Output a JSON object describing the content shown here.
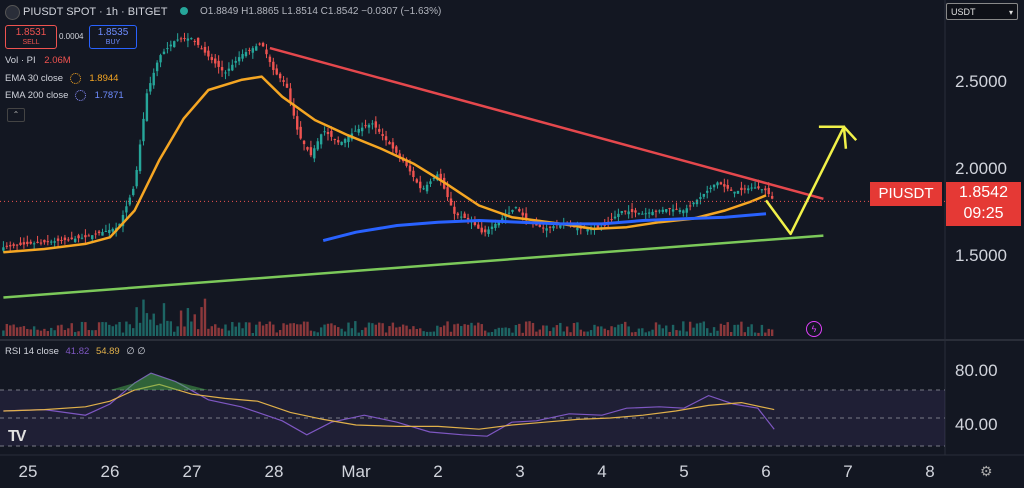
{
  "header": {
    "title": "PIUSDT SPOT · 1h · BITGET",
    "ohlc_label": "O1.8849 H1.8865 L1.8514 C1.8542 −0.0307 (−1.63%)",
    "sell_price": "1.8531",
    "sell_label": "SELL",
    "spread": "0.0004",
    "buy_price": "1.8535",
    "buy_label": "BUY"
  },
  "legend": {
    "vol": "Vol · PI",
    "vol_value": "2.06M",
    "ema30": "EMA 30 close",
    "ema30_value": "1.8944",
    "ema200": "EMA 200 close",
    "ema200_value": "1.7871"
  },
  "currency_select": "USDT",
  "price_tag": {
    "symbol": "PIUSDT",
    "price": "1.8542",
    "countdown": "09:25"
  },
  "rsi_legend": {
    "label": "RSI 14 close",
    "value1": "41.82",
    "value2": "54.89",
    "extra": "∅ ∅"
  },
  "icons": {
    "logo": "TV",
    "settings": "gear-icon",
    "bolt": "lightning-icon"
  },
  "colors": {
    "background": "#131722",
    "up": "#26a69a",
    "down": "#ef5350",
    "ema30": "#f5a623",
    "ema200": "#2962ff",
    "resistance": "#e5484d",
    "support": "#7cc95a",
    "projection": "#f1f149",
    "rsi": "#7e57c2",
    "rsi_ma": "#e0b04a"
  },
  "chart_data": [
    {
      "type": "line",
      "title": "",
      "x": [
        "25",
        "26",
        "27",
        "28",
        "Mar",
        "2",
        "3",
        "4",
        "5",
        "6",
        "7",
        "8"
      ],
      "xlabel": "",
      "ylabel": "",
      "ylim": [
        1.05,
        2.95
      ],
      "yticks": [
        1.5,
        2.0,
        2.5
      ],
      "ytick_labels": [
        "1.5000",
        "2.0000",
        "2.5000"
      ],
      "grid": false,
      "series": [
        {
          "name": "EMA 30 close",
          "points": [
            [
              24.7,
              1.55
            ],
            [
              25.2,
              1.57
            ],
            [
              25.7,
              1.6
            ],
            [
              26.0,
              1.64
            ],
            [
              26.3,
              1.8
            ],
            [
              26.6,
              2.1
            ],
            [
              26.9,
              2.35
            ],
            [
              27.2,
              2.52
            ],
            [
              27.6,
              2.58
            ],
            [
              27.85,
              2.6
            ],
            [
              28.1,
              2.48
            ],
            [
              28.5,
              2.34
            ],
            [
              28.9,
              2.25
            ],
            [
              29.3,
              2.17
            ],
            [
              29.7,
              2.08
            ],
            [
              30.1,
              1.96
            ],
            [
              30.5,
              1.83
            ],
            [
              30.9,
              1.76
            ],
            [
              31.2,
              1.74
            ],
            [
              31.5,
              1.72
            ],
            [
              31.9,
              1.69
            ],
            [
              32.3,
              1.7
            ],
            [
              32.7,
              1.73
            ],
            [
              33.1,
              1.75
            ],
            [
              33.5,
              1.8
            ],
            [
              33.8,
              1.85
            ],
            [
              34.0,
              1.89
            ]
          ]
        },
        {
          "name": "EMA 200 close",
          "points": [
            [
              28.6,
              1.62
            ],
            [
              29.0,
              1.67
            ],
            [
              29.5,
              1.71
            ],
            [
              30.0,
              1.73
            ],
            [
              30.5,
              1.74
            ],
            [
              31.0,
              1.73
            ],
            [
              31.5,
              1.72
            ],
            [
              32.0,
              1.72
            ],
            [
              32.5,
              1.74
            ],
            [
              33.0,
              1.75
            ],
            [
              33.5,
              1.76
            ],
            [
              34.0,
              1.78
            ]
          ]
        },
        {
          "name": "Resistance",
          "points": [
            [
              27.95,
              2.77
            ],
            [
              34.7,
              1.87
            ]
          ]
        },
        {
          "name": "Support",
          "points": [
            [
              24.7,
              1.28
            ],
            [
              34.7,
              1.65
            ]
          ]
        },
        {
          "name": "Projection",
          "points": [
            [
              34.0,
              1.86
            ],
            [
              34.3,
              1.66
            ],
            [
              34.95,
              2.3
            ],
            [
              35.1,
              2.22
            ]
          ]
        },
        {
          "name": "Price",
          "points": [
            [
              24.7,
              1.58
            ],
            [
              25.0,
              1.6
            ],
            [
              25.4,
              1.62
            ],
            [
              25.7,
              1.64
            ],
            [
              26.1,
              1.7
            ],
            [
              26.3,
              1.95
            ],
            [
              26.45,
              2.5
            ],
            [
              26.6,
              2.72
            ],
            [
              26.8,
              2.82
            ],
            [
              27.0,
              2.83
            ],
            [
              27.2,
              2.72
            ],
            [
              27.4,
              2.62
            ],
            [
              27.6,
              2.73
            ],
            [
              27.85,
              2.8
            ],
            [
              28.0,
              2.63
            ],
            [
              28.15,
              2.55
            ],
            [
              28.3,
              2.25
            ],
            [
              28.45,
              2.13
            ],
            [
              28.6,
              2.28
            ],
            [
              28.8,
              2.2
            ],
            [
              29.0,
              2.28
            ],
            [
              29.2,
              2.32
            ],
            [
              29.4,
              2.2
            ],
            [
              29.6,
              2.08
            ],
            [
              29.8,
              1.92
            ],
            [
              30.0,
              2.02
            ],
            [
              30.2,
              1.78
            ],
            [
              30.4,
              1.74
            ],
            [
              30.55,
              1.66
            ],
            [
              30.75,
              1.74
            ],
            [
              30.95,
              1.82
            ],
            [
              31.1,
              1.73
            ],
            [
              31.3,
              1.69
            ],
            [
              31.5,
              1.72
            ],
            [
              31.75,
              1.69
            ],
            [
              32.0,
              1.7
            ],
            [
              32.25,
              1.8
            ],
            [
              32.5,
              1.78
            ],
            [
              32.8,
              1.81
            ],
            [
              33.0,
              1.8
            ],
            [
              33.2,
              1.88
            ],
            [
              33.4,
              1.97
            ],
            [
              33.6,
              1.91
            ],
            [
              33.85,
              1.94
            ],
            [
              34.0,
              1.92
            ],
            [
              34.1,
              1.854
            ]
          ]
        }
      ]
    },
    {
      "type": "line",
      "title": "RSI 14 close",
      "ylim": [
        30,
        90
      ],
      "yticks": [
        40,
        80
      ],
      "ytick_labels": [
        "40.00",
        "80.00"
      ],
      "band": [
        30,
        70
      ],
      "series": [
        {
          "name": "RSI",
          "points": [
            [
              24.7,
              55
            ],
            [
              25.2,
              56
            ],
            [
              25.7,
              52
            ],
            [
              26.0,
              60
            ],
            [
              26.3,
              75
            ],
            [
              26.5,
              82
            ],
            [
              26.8,
              76
            ],
            [
              27.2,
              63
            ],
            [
              27.6,
              58
            ],
            [
              28.1,
              48
            ],
            [
              28.4,
              38
            ],
            [
              28.7,
              47
            ],
            [
              29.1,
              52
            ],
            [
              29.5,
              47
            ],
            [
              29.9,
              40
            ],
            [
              30.3,
              38
            ],
            [
              30.6,
              37
            ],
            [
              30.9,
              47
            ],
            [
              31.2,
              48
            ],
            [
              31.6,
              53
            ],
            [
              32.0,
              52
            ],
            [
              32.3,
              57
            ],
            [
              32.7,
              58
            ],
            [
              33.0,
              57
            ],
            [
              33.3,
              66
            ],
            [
              33.6,
              60
            ],
            [
              33.9,
              57
            ],
            [
              34.1,
              42
            ]
          ]
        },
        {
          "name": "RSI MA",
          "points": [
            [
              24.7,
              55
            ],
            [
              25.2,
              56
            ],
            [
              25.7,
              58
            ],
            [
              26.0,
              62
            ],
            [
              26.3,
              70
            ],
            [
              26.6,
              74
            ],
            [
              27.0,
              67
            ],
            [
              27.4,
              64
            ],
            [
              27.8,
              62
            ],
            [
              28.2,
              54
            ],
            [
              28.6,
              49
            ],
            [
              29.0,
              45
            ],
            [
              29.5,
              44
            ],
            [
              30.0,
              44
            ],
            [
              30.5,
              42
            ],
            [
              30.9,
              45
            ],
            [
              31.3,
              47
            ],
            [
              31.7,
              49
            ],
            [
              32.1,
              50
            ],
            [
              32.5,
              52
            ],
            [
              32.9,
              55
            ],
            [
              33.3,
              59
            ],
            [
              33.7,
              61
            ],
            [
              34.1,
              56
            ]
          ]
        }
      ]
    }
  ]
}
